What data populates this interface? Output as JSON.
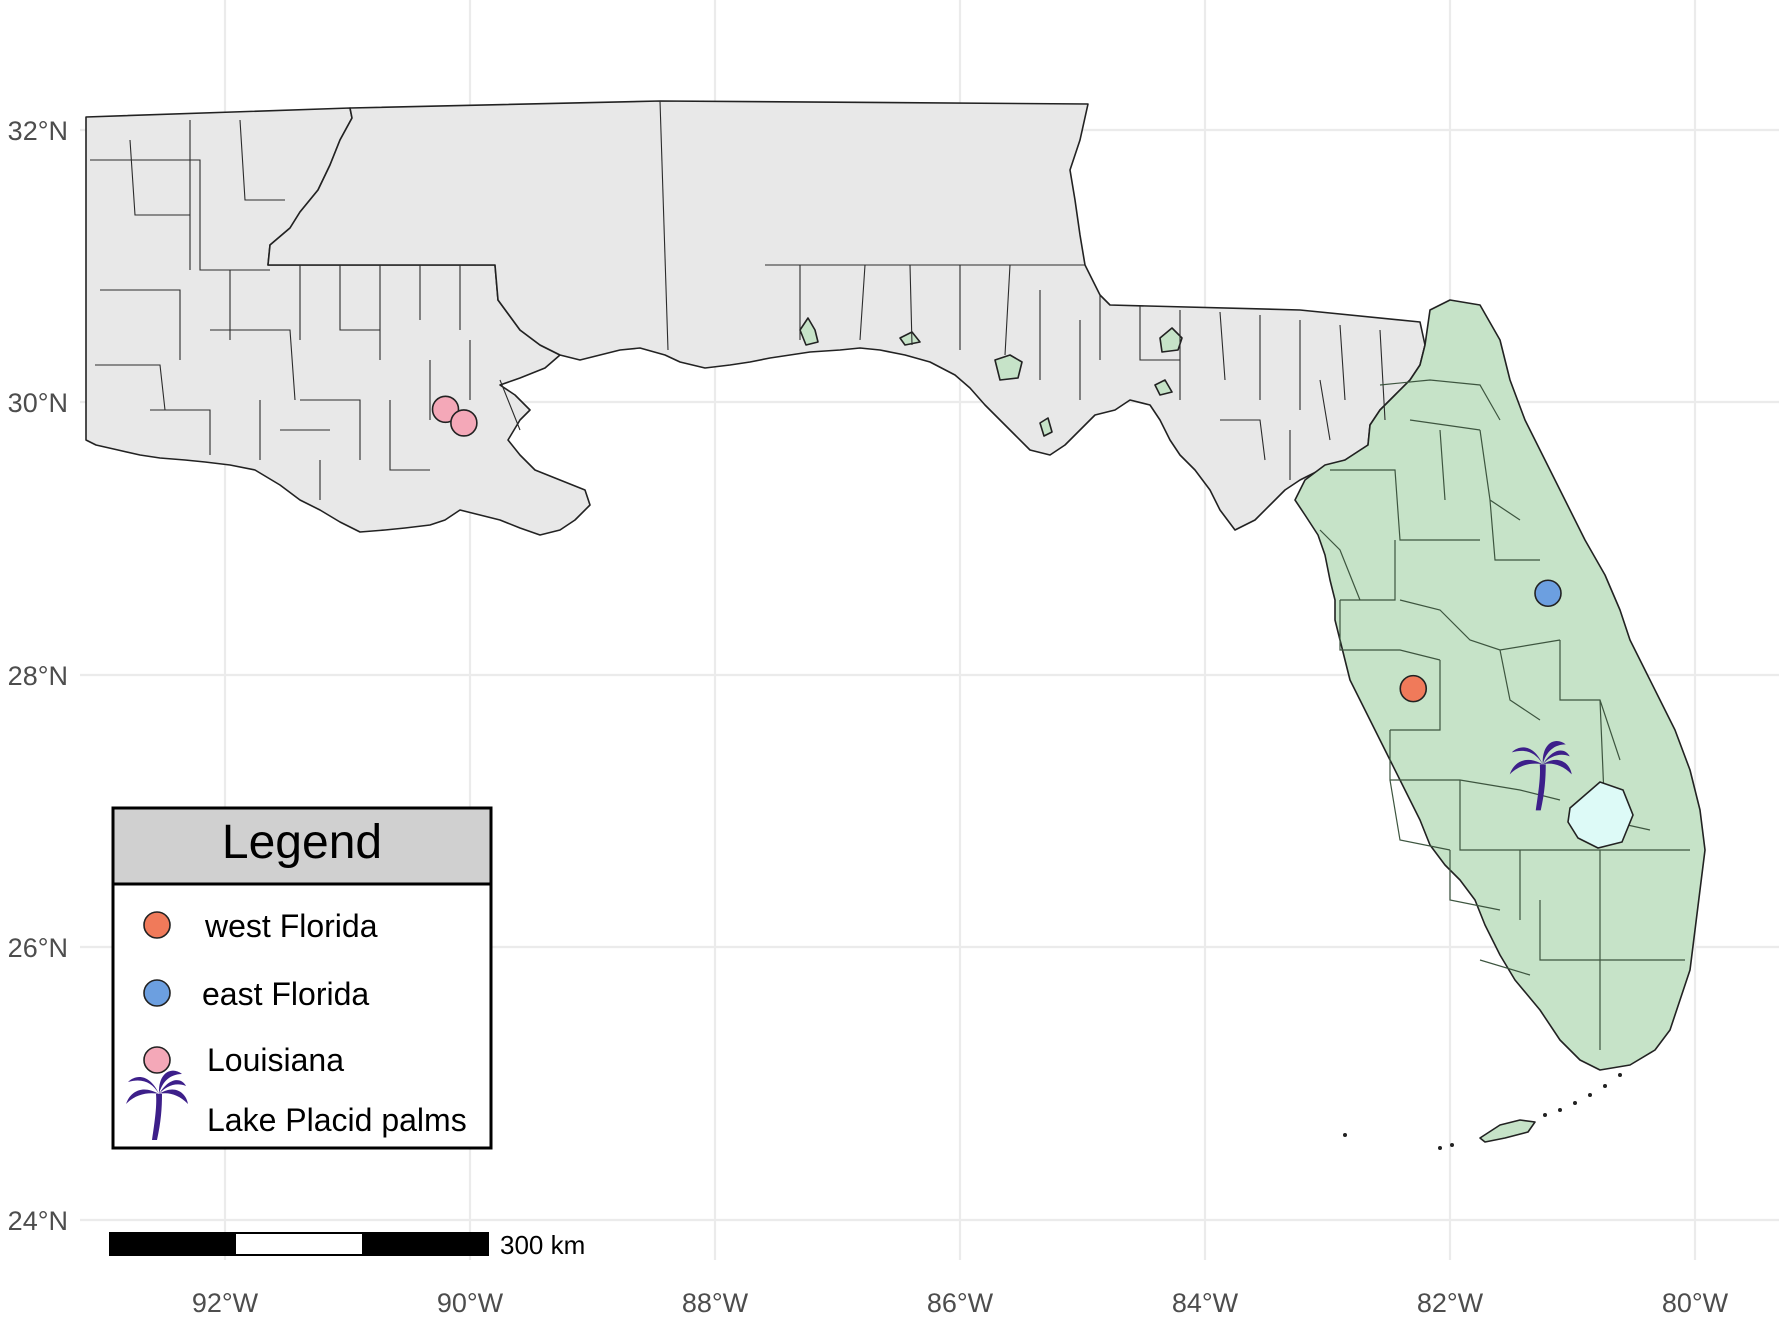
{
  "map": {
    "lon_ticks": [
      "92°W",
      "90°W",
      "88°W",
      "86°W",
      "84°W",
      "82°W",
      "80°W"
    ],
    "lat_ticks": [
      "32°N",
      "30°N",
      "28°N",
      "26°N",
      "24°N"
    ],
    "colors": {
      "land": "#e8e8e8",
      "range": "#c6e3c8",
      "lake": "#ddfaf7",
      "west_florida": "#f07a5a",
      "east_florida": "#6c9fe0",
      "louisiana": "#f4a8b8",
      "palm": "#3d1f8a"
    },
    "points": [
      {
        "group": "west Florida",
        "lon": -82.3,
        "lat": 27.9
      },
      {
        "group": "east Florida",
        "lon": -81.2,
        "lat": 28.6
      },
      {
        "group": "Louisiana",
        "lon": -90.2,
        "lat": 29.95
      },
      {
        "group": "Louisiana",
        "lon": -90.05,
        "lat": 29.85
      }
    ],
    "palm_location": {
      "lon": -81.3,
      "lat": 27.3
    }
  },
  "legend": {
    "title": "Legend",
    "items": [
      {
        "label": "west Florida",
        "symbol": "circle"
      },
      {
        "label": "east Florida",
        "symbol": "circle"
      },
      {
        "label": "Louisiana",
        "symbol": "circle"
      },
      {
        "label": "Lake Placid palms",
        "symbol": "palm-icon"
      }
    ]
  },
  "scale_bar": {
    "label": "300 km"
  }
}
